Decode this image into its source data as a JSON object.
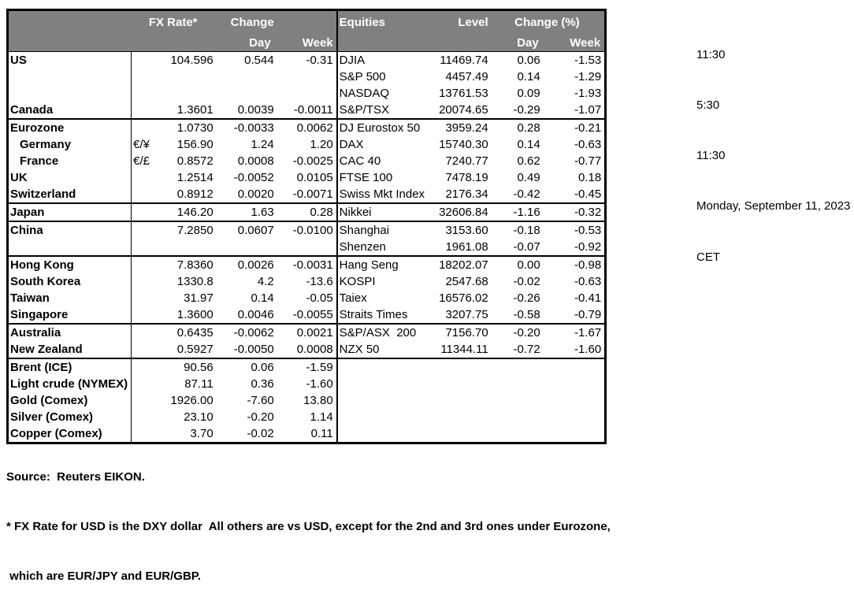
{
  "header": {
    "fx_rate": "FX Rate*",
    "change": "Change",
    "day": "Day",
    "week": "Week",
    "equities": "Equities",
    "level": "Level",
    "change_pct": "Change (%)"
  },
  "colors": {
    "header_bg": "#808080",
    "header_text": "#ffffff",
    "border": "#000000"
  },
  "rows": [
    {
      "country": "US",
      "pair": "",
      "fx": "104.596",
      "fx_day": "0.544",
      "fx_week": "-0.31",
      "equity": "DJIA",
      "level": "11469.74",
      "eq_day": "0.06",
      "eq_week": "-1.53",
      "indent": false,
      "section_end": false
    },
    {
      "country": "",
      "pair": "",
      "fx": "",
      "fx_day": "",
      "fx_week": "",
      "equity": "S&P 500",
      "level": "4457.49",
      "eq_day": "0.14",
      "eq_week": "-1.29",
      "indent": false,
      "section_end": false
    },
    {
      "country": "",
      "pair": "",
      "fx": "",
      "fx_day": "",
      "fx_week": "",
      "equity": "NASDAQ",
      "level": "13761.53",
      "eq_day": "0.09",
      "eq_week": "-1.93",
      "indent": false,
      "section_end": false
    },
    {
      "country": "Canada",
      "pair": "",
      "fx": "1.3601",
      "fx_day": "0.0039",
      "fx_week": "-0.0011",
      "equity": "S&P/TSX",
      "level": "20074.65",
      "eq_day": "-0.29",
      "eq_week": "-1.07",
      "indent": false,
      "section_end": true
    },
    {
      "country": "Eurozone",
      "pair": "",
      "fx": "1.0730",
      "fx_day": "-0.0033",
      "fx_week": "0.0062",
      "equity": "DJ Eurostox 50",
      "level": "3959.24",
      "eq_day": "0.28",
      "eq_week": "-0.21",
      "indent": false,
      "section_end": false
    },
    {
      "country": "Germany",
      "pair": "€/¥",
      "fx": "156.90",
      "fx_day": "1.24",
      "fx_week": "1.20",
      "equity": "DAX",
      "level": "15740.30",
      "eq_day": "0.14",
      "eq_week": "-0.63",
      "indent": true,
      "section_end": false
    },
    {
      "country": "France",
      "pair": "€/£",
      "fx": "0.8572",
      "fx_day": "0.0008",
      "fx_week": "-0.0025",
      "equity": "CAC 40",
      "level": "7240.77",
      "eq_day": "0.62",
      "eq_week": "-0.77",
      "indent": true,
      "section_end": false
    },
    {
      "country": "UK",
      "pair": "",
      "fx": "1.2514",
      "fx_day": "-0.0052",
      "fx_week": "0.0105",
      "equity": "FTSE 100",
      "level": "7478.19",
      "eq_day": "0.49",
      "eq_week": "0.18",
      "indent": false,
      "section_end": false
    },
    {
      "country": "Switzerland",
      "pair": "",
      "fx": "0.8912",
      "fx_day": "0.0020",
      "fx_week": "-0.0071",
      "equity": "Swiss Mkt Index",
      "level": "2176.34",
      "eq_day": "-0.42",
      "eq_week": "-0.45",
      "indent": false,
      "section_end": true
    },
    {
      "country": "Japan",
      "pair": "",
      "fx": "146.20",
      "fx_day": "1.63",
      "fx_week": "0.28",
      "equity": "Nikkei",
      "level": "32606.84",
      "eq_day": "-1.16",
      "eq_week": "-0.32",
      "indent": false,
      "section_end": true
    },
    {
      "country": "China",
      "pair": "",
      "fx": "7.2850",
      "fx_day": "0.0607",
      "fx_week": "-0.0100",
      "equity": "Shanghai",
      "level": "3153.60",
      "eq_day": "-0.18",
      "eq_week": "-0.53",
      "indent": false,
      "section_end": false
    },
    {
      "country": "",
      "pair": "",
      "fx": "",
      "fx_day": "",
      "fx_week": "",
      "equity": "Shenzen",
      "level": "1961.08",
      "eq_day": "-0.07",
      "eq_week": "-0.92",
      "indent": false,
      "section_end": true
    },
    {
      "country": "Hong Kong",
      "pair": "",
      "fx": "7.8360",
      "fx_day": "0.0026",
      "fx_week": "-0.0031",
      "equity": "Hang Seng",
      "level": "18202.07",
      "eq_day": "0.00",
      "eq_week": "-0.98",
      "indent": false,
      "section_end": false
    },
    {
      "country": "South Korea",
      "pair": "",
      "fx": "1330.8",
      "fx_day": "4.2",
      "fx_week": "-13.6",
      "equity": "KOSPI",
      "level": "2547.68",
      "eq_day": "-0.02",
      "eq_week": "-0.63",
      "indent": false,
      "section_end": false
    },
    {
      "country": "Taiwan",
      "pair": "",
      "fx": "31.97",
      "fx_day": "0.14",
      "fx_week": "-0.05",
      "equity": "Taiex",
      "level": "16576.02",
      "eq_day": "-0.26",
      "eq_week": "-0.41",
      "indent": false,
      "section_end": false
    },
    {
      "country": "Singapore",
      "pair": "",
      "fx": "1.3600",
      "fx_day": "0.0046",
      "fx_week": "-0.0055",
      "equity": "Straits Times",
      "level": "3207.75",
      "eq_day": "-0.58",
      "eq_week": "-0.79",
      "indent": false,
      "section_end": true
    },
    {
      "country": "Australia",
      "pair": "",
      "fx": "0.6435",
      "fx_day": "-0.0062",
      "fx_week": "0.0021",
      "equity": "S&P/ASX  200",
      "level": "7156.70",
      "eq_day": "-0.20",
      "eq_week": "-1.67",
      "indent": false,
      "section_end": false
    },
    {
      "country": "New Zealand",
      "pair": "",
      "fx": "0.5927",
      "fx_day": "-0.0050",
      "fx_week": "0.0008",
      "equity": "NZX 50",
      "level": "11344.11",
      "eq_day": "-0.72",
      "eq_week": "-1.60",
      "indent": false,
      "section_end": true
    },
    {
      "country": "Brent (ICE)",
      "pair": "",
      "fx": "90.56",
      "fx_day": "0.06",
      "fx_week": "-1.59",
      "equity": "",
      "level": "",
      "eq_day": "",
      "eq_week": "",
      "indent": false,
      "section_end": false
    },
    {
      "country": "Light crude (NYMEX)",
      "pair": "",
      "fx": "87.11",
      "fx_day": "0.36",
      "fx_week": "-1.60",
      "equity": "",
      "level": "",
      "eq_day": "",
      "eq_week": "",
      "indent": false,
      "section_end": false
    },
    {
      "country": "Gold (Comex)",
      "pair": "",
      "fx": "1926.00",
      "fx_day": "-7.60",
      "fx_week": "13.80",
      "equity": "",
      "level": "",
      "eq_day": "",
      "eq_week": "",
      "indent": false,
      "section_end": false
    },
    {
      "country": "Silver (Comex)",
      "pair": "",
      "fx": "23.10",
      "fx_day": "-0.20",
      "fx_week": "1.14",
      "equity": "",
      "level": "",
      "eq_day": "",
      "eq_week": "",
      "indent": false,
      "section_end": false
    },
    {
      "country": "Copper (Comex)",
      "pair": "",
      "fx": "3.70",
      "fx_day": "-0.02",
      "fx_week": "0.11",
      "equity": "",
      "level": "",
      "eq_day": "",
      "eq_week": "",
      "indent": false,
      "section_end": false
    }
  ],
  "side_panel": {
    "lines": [
      "11:30",
      "5:30",
      "11:30",
      "Monday, September 11, 2023",
      "CET"
    ]
  },
  "footer": {
    "source": "Source:  Reuters EIKON.",
    "note1": "* FX Rate for USD is the DXY dollar  All others are vs USD, except for the 2nd and 3rd ones under Eurozone,",
    "note2": " which are EUR/JPY and EUR/GBP."
  }
}
